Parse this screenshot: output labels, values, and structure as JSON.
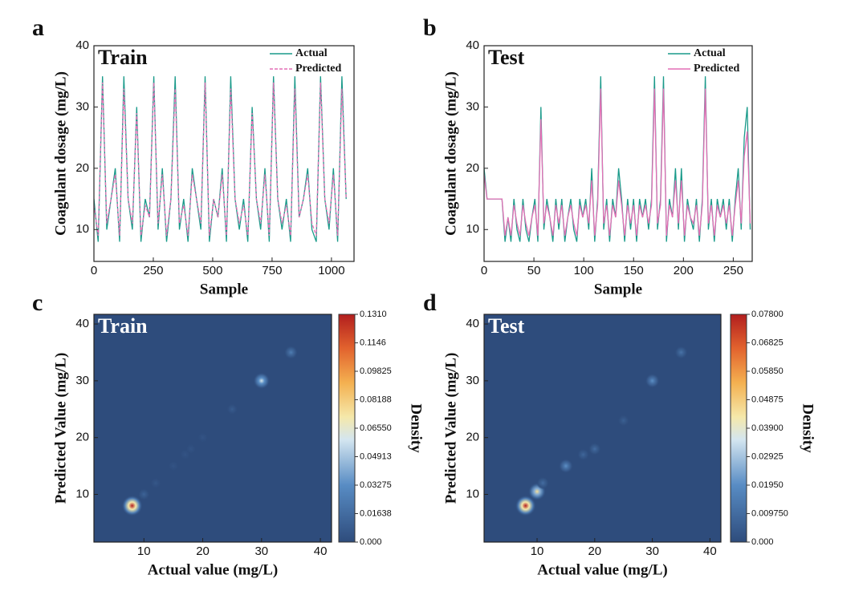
{
  "chart_data": [
    {
      "type": "line",
      "panel_label": "a",
      "title": "Train",
      "xlabel": "Sample",
      "ylabel": "Coagulant dosage (mg/L)",
      "xlim": [
        0,
        1095
      ],
      "xticks": [
        0,
        250,
        500,
        750,
        1000
      ],
      "ylim": [
        4.8,
        40
      ],
      "yticks": [
        10,
        20,
        30,
        40
      ],
      "x": [
        0,
        18,
        36,
        54,
        72,
        90,
        108,
        126,
        144,
        162,
        180,
        198,
        216,
        234,
        252,
        270,
        288,
        306,
        324,
        342,
        360,
        378,
        396,
        414,
        432,
        450,
        468,
        486,
        504,
        522,
        540,
        558,
        576,
        594,
        612,
        630,
        648,
        666,
        684,
        702,
        720,
        738,
        756,
        774,
        792,
        810,
        828,
        846,
        864,
        882,
        900,
        918,
        936,
        954,
        972,
        990,
        1008,
        1026,
        1044,
        1062
      ],
      "series": [
        {
          "name": "Actual",
          "color": "#1a9a8a",
          "dashed": false,
          "values": [
            15,
            8,
            35,
            10,
            15,
            20,
            8,
            35,
            15,
            10,
            30,
            8,
            15,
            12,
            35,
            10,
            20,
            8,
            15,
            35,
            10,
            15,
            8,
            20,
            15,
            10,
            35,
            8,
            15,
            12,
            20,
            8,
            35,
            15,
            10,
            15,
            8,
            30,
            15,
            10,
            20,
            8,
            35,
            15,
            10,
            15,
            8,
            35,
            12,
            15,
            20,
            10,
            8,
            35,
            15,
            10,
            20,
            8,
            35,
            15
          ]
        },
        {
          "name": "Predicted",
          "color": "#e46fb5",
          "dashed": true,
          "values": [
            14,
            9,
            34,
            11,
            15,
            19,
            9,
            33,
            15,
            11,
            29,
            9,
            14,
            12,
            34,
            11,
            19,
            9,
            15,
            33,
            11,
            14,
            9,
            19,
            15,
            11,
            34,
            9,
            15,
            12,
            19,
            9,
            33,
            15,
            11,
            14,
            9,
            29,
            15,
            11,
            19,
            9,
            34,
            15,
            11,
            14,
            9,
            33,
            12,
            15,
            19,
            11,
            9,
            34,
            15,
            11,
            19,
            9,
            33,
            15
          ]
        }
      ]
    },
    {
      "type": "line",
      "panel_label": "b",
      "title": "Test",
      "xlabel": "Sample",
      "ylabel": "Coagulant dosage (mg/L)",
      "xlim": [
        0,
        269
      ],
      "xticks": [
        0,
        50,
        100,
        150,
        200,
        250
      ],
      "ylim": [
        4.8,
        40
      ],
      "yticks": [
        10,
        20,
        30,
        40
      ],
      "x": [
        0,
        3,
        6,
        9,
        12,
        15,
        18,
        21,
        24,
        27,
        30,
        33,
        36,
        39,
        42,
        45,
        48,
        51,
        54,
        57,
        60,
        63,
        66,
        69,
        72,
        75,
        78,
        81,
        84,
        87,
        90,
        93,
        96,
        99,
        102,
        105,
        108,
        111,
        114,
        117,
        120,
        123,
        126,
        129,
        132,
        135,
        138,
        141,
        144,
        147,
        150,
        153,
        156,
        159,
        162,
        165,
        168,
        171,
        174,
        177,
        180,
        183,
        186,
        189,
        192,
        195,
        198,
        201,
        204,
        207,
        210,
        213,
        216,
        219,
        222,
        225,
        228,
        231,
        234,
        237,
        240,
        243,
        246,
        249,
        252,
        255,
        258,
        261,
        264,
        267
      ],
      "series": [
        {
          "name": "Actual",
          "color": "#1a9a8a",
          "dashed": false,
          "values": [
            20,
            15,
            15,
            15,
            15,
            15,
            15,
            8,
            12,
            8,
            15,
            10,
            8,
            15,
            10,
            8,
            12,
            15,
            8,
            30,
            10,
            15,
            12,
            8,
            15,
            10,
            15,
            8,
            12,
            15,
            10,
            8,
            15,
            12,
            15,
            10,
            20,
            8,
            15,
            35,
            10,
            15,
            8,
            15,
            12,
            20,
            15,
            8,
            15,
            10,
            15,
            8,
            15,
            12,
            15,
            10,
            15,
            35,
            10,
            15,
            35,
            8,
            15,
            12,
            20,
            10,
            20,
            8,
            15,
            12,
            10,
            15,
            8,
            15,
            35,
            10,
            15,
            8,
            15,
            12,
            15,
            10,
            15,
            8,
            15,
            20,
            10,
            25,
            30,
            10
          ]
        },
        {
          "name": "Predicted",
          "color": "#e46fb5",
          "dashed": false,
          "values": [
            19,
            15,
            15,
            15,
            15,
            15,
            15,
            9,
            12,
            9,
            14,
            11,
            9,
            14,
            11,
            9,
            12,
            14,
            9,
            28,
            11,
            14,
            12,
            9,
            14,
            11,
            14,
            9,
            12,
            14,
            11,
            9,
            14,
            12,
            14,
            11,
            18,
            9,
            14,
            33,
            11,
            14,
            9,
            14,
            12,
            18,
            14,
            9,
            14,
            11,
            14,
            9,
            14,
            12,
            14,
            11,
            14,
            33,
            11,
            14,
            33,
            9,
            14,
            12,
            18,
            11,
            18,
            9,
            14,
            12,
            11,
            14,
            9,
            14,
            33,
            11,
            14,
            9,
            14,
            12,
            14,
            11,
            14,
            9,
            14,
            18,
            11,
            22,
            26,
            11
          ]
        }
      ]
    },
    {
      "type": "heatmap",
      "panel_label": "c",
      "title": "Train",
      "xlabel": "Actual value (mg/L)",
      "ylabel": "Predicted Value (mg/L)",
      "colorbar_label": "Density",
      "xlim": [
        1.5,
        41.9
      ],
      "xticks": [
        10,
        20,
        30,
        40
      ],
      "ylim": [
        1.6,
        41.7
      ],
      "yticks": [
        10,
        20,
        30,
        40
      ],
      "x": [
        8,
        10,
        12,
        15,
        17,
        18,
        20,
        25,
        30,
        35
      ],
      "y": [
        8,
        10,
        12,
        15,
        17,
        18,
        20,
        25,
        30,
        35
      ],
      "density": [
        0.131,
        0.012,
        0.006,
        0.004,
        0.004,
        0.004,
        0.004,
        0.008,
        0.06,
        0.025
      ],
      "clim": [
        0,
        0.131
      ],
      "cticks": [
        {
          "value": 0,
          "label": "0.000"
        },
        0.01638,
        0.03275,
        0.04913,
        {
          "value": 0.0655,
          "label": "0.06550"
        },
        0.08188,
        0.09825,
        0.1146,
        {
          "value": 0.131,
          "label": "0.1310"
        }
      ]
    },
    {
      "type": "heatmap",
      "panel_label": "d",
      "title": "Test",
      "xlabel": "Actual value (mg/L)",
      "ylabel": "Predicted Value (mg/L)",
      "colorbar_label": "Density",
      "xlim": [
        0.8,
        41.9
      ],
      "xticks": [
        10,
        20,
        30,
        40
      ],
      "ylim": [
        1.6,
        41.7
      ],
      "yticks": [
        10,
        20,
        30,
        40
      ],
      "x": [
        8,
        10,
        11,
        15,
        18,
        20,
        25,
        30,
        35
      ],
      "y": [
        8,
        10.5,
        12,
        15,
        17,
        18,
        23,
        30,
        35
      ],
      "density": [
        0.078,
        0.045,
        0.01,
        0.02,
        0.008,
        0.01,
        0.006,
        0.02,
        0.012
      ],
      "clim": [
        0,
        0.078
      ],
      "cticks": [
        {
          "value": 0,
          "label": "0.000"
        },
        {
          "value": 0.00975,
          "label": "0.009750"
        },
        {
          "value": 0.0195,
          "label": "0.01950"
        },
        0.02925,
        {
          "value": 0.039,
          "label": "0.03900"
        },
        0.04875,
        {
          "value": 0.0585,
          "label": "0.05850"
        },
        0.06825,
        {
          "value": 0.078,
          "label": "0.07800"
        }
      ]
    }
  ]
}
